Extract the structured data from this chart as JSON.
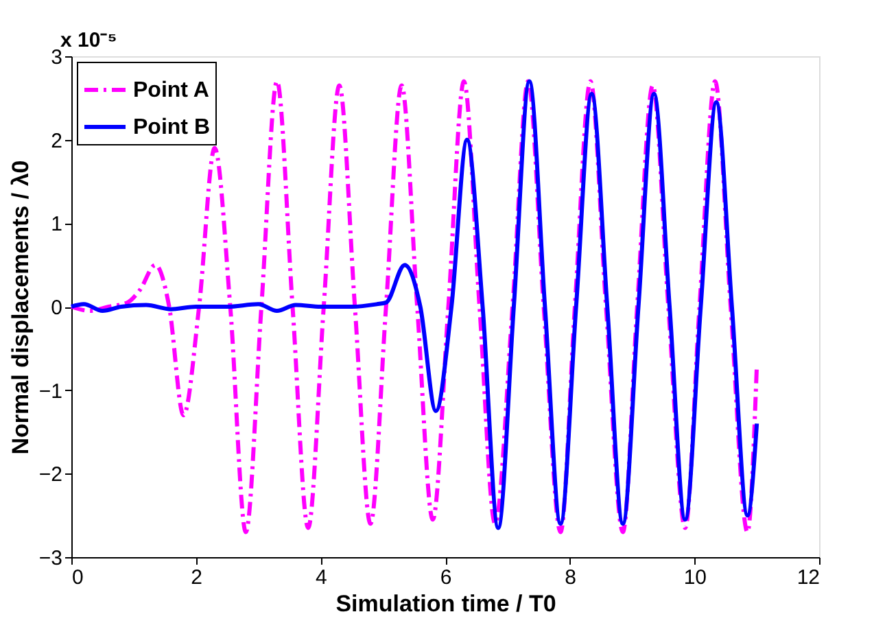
{
  "chart_data": {
    "type": "line",
    "xlabel": "Simulation time / T0",
    "ylabel": "Normal displacements / λ0",
    "annotations": [
      "x 10⁻⁵"
    ],
    "xlim": [
      0,
      12
    ],
    "xticks": [
      0,
      2,
      4,
      6,
      8,
      10,
      12
    ],
    "ylim": [
      -3,
      3
    ],
    "yticks": [
      -3,
      -2,
      -1,
      0,
      1,
      2,
      3
    ],
    "grid": false,
    "legend": "top left",
    "marker": "none",
    "series": [
      {
        "name": "Point A",
        "color": "#ff00ff",
        "line_style": "dashdot",
        "x": [
          0,
          0.3,
          0.6,
          0.9,
          1.1,
          1.35,
          1.57,
          1.8,
          2.05,
          2.3,
          2.55,
          2.8,
          3.05,
          3.3,
          3.55,
          3.8,
          4.05,
          4.3,
          4.55,
          4.8,
          5.05,
          5.3,
          5.55,
          5.8,
          6.05,
          6.3,
          6.55,
          6.8,
          7.08,
          7.33,
          7.58,
          7.85,
          8.08,
          8.33,
          8.58,
          8.85,
          9.08,
          9.33,
          9.58,
          9.85,
          10.08,
          10.33,
          10.58,
          10.85,
          11.0
        ],
        "values": [
          0,
          -0.05,
          0,
          0.05,
          0.2,
          0.5,
          0,
          -1.3,
          0,
          1.9,
          0,
          -2.7,
          0,
          2.7,
          0,
          -2.65,
          0,
          2.65,
          0,
          -2.6,
          0,
          2.65,
          0,
          -2.55,
          0,
          2.7,
          0,
          -2.6,
          0,
          2.7,
          0,
          -2.7,
          0,
          2.7,
          0,
          -2.7,
          0,
          2.65,
          0,
          -2.65,
          0,
          2.7,
          0,
          -2.7,
          -0.7
        ]
      },
      {
        "name": "Point B",
        "color": "#0000ff",
        "line_style": "solid",
        "x": [
          0,
          0.2,
          0.5,
          0.8,
          1.2,
          1.6,
          2.0,
          2.5,
          3.0,
          3.3,
          3.6,
          4.0,
          4.5,
          4.9,
          5.05,
          5.35,
          5.6,
          5.85,
          6.1,
          6.35,
          6.6,
          6.85,
          7.1,
          7.35,
          7.6,
          7.85,
          8.1,
          8.35,
          8.6,
          8.85,
          9.1,
          9.35,
          9.6,
          9.85,
          10.1,
          10.35,
          10.6,
          10.85,
          11.0
        ],
        "values": [
          0,
          0.03,
          -0.05,
          0,
          0.02,
          -0.03,
          0,
          0,
          0.03,
          -0.05,
          0.02,
          0,
          0,
          0.03,
          0.05,
          0.5,
          0,
          -1.25,
          0,
          2.0,
          0,
          -2.65,
          0,
          2.7,
          0,
          -2.6,
          0,
          2.55,
          0,
          -2.6,
          0,
          2.55,
          0,
          -2.55,
          0,
          2.45,
          0,
          -2.5,
          -1.4
        ]
      }
    ]
  }
}
